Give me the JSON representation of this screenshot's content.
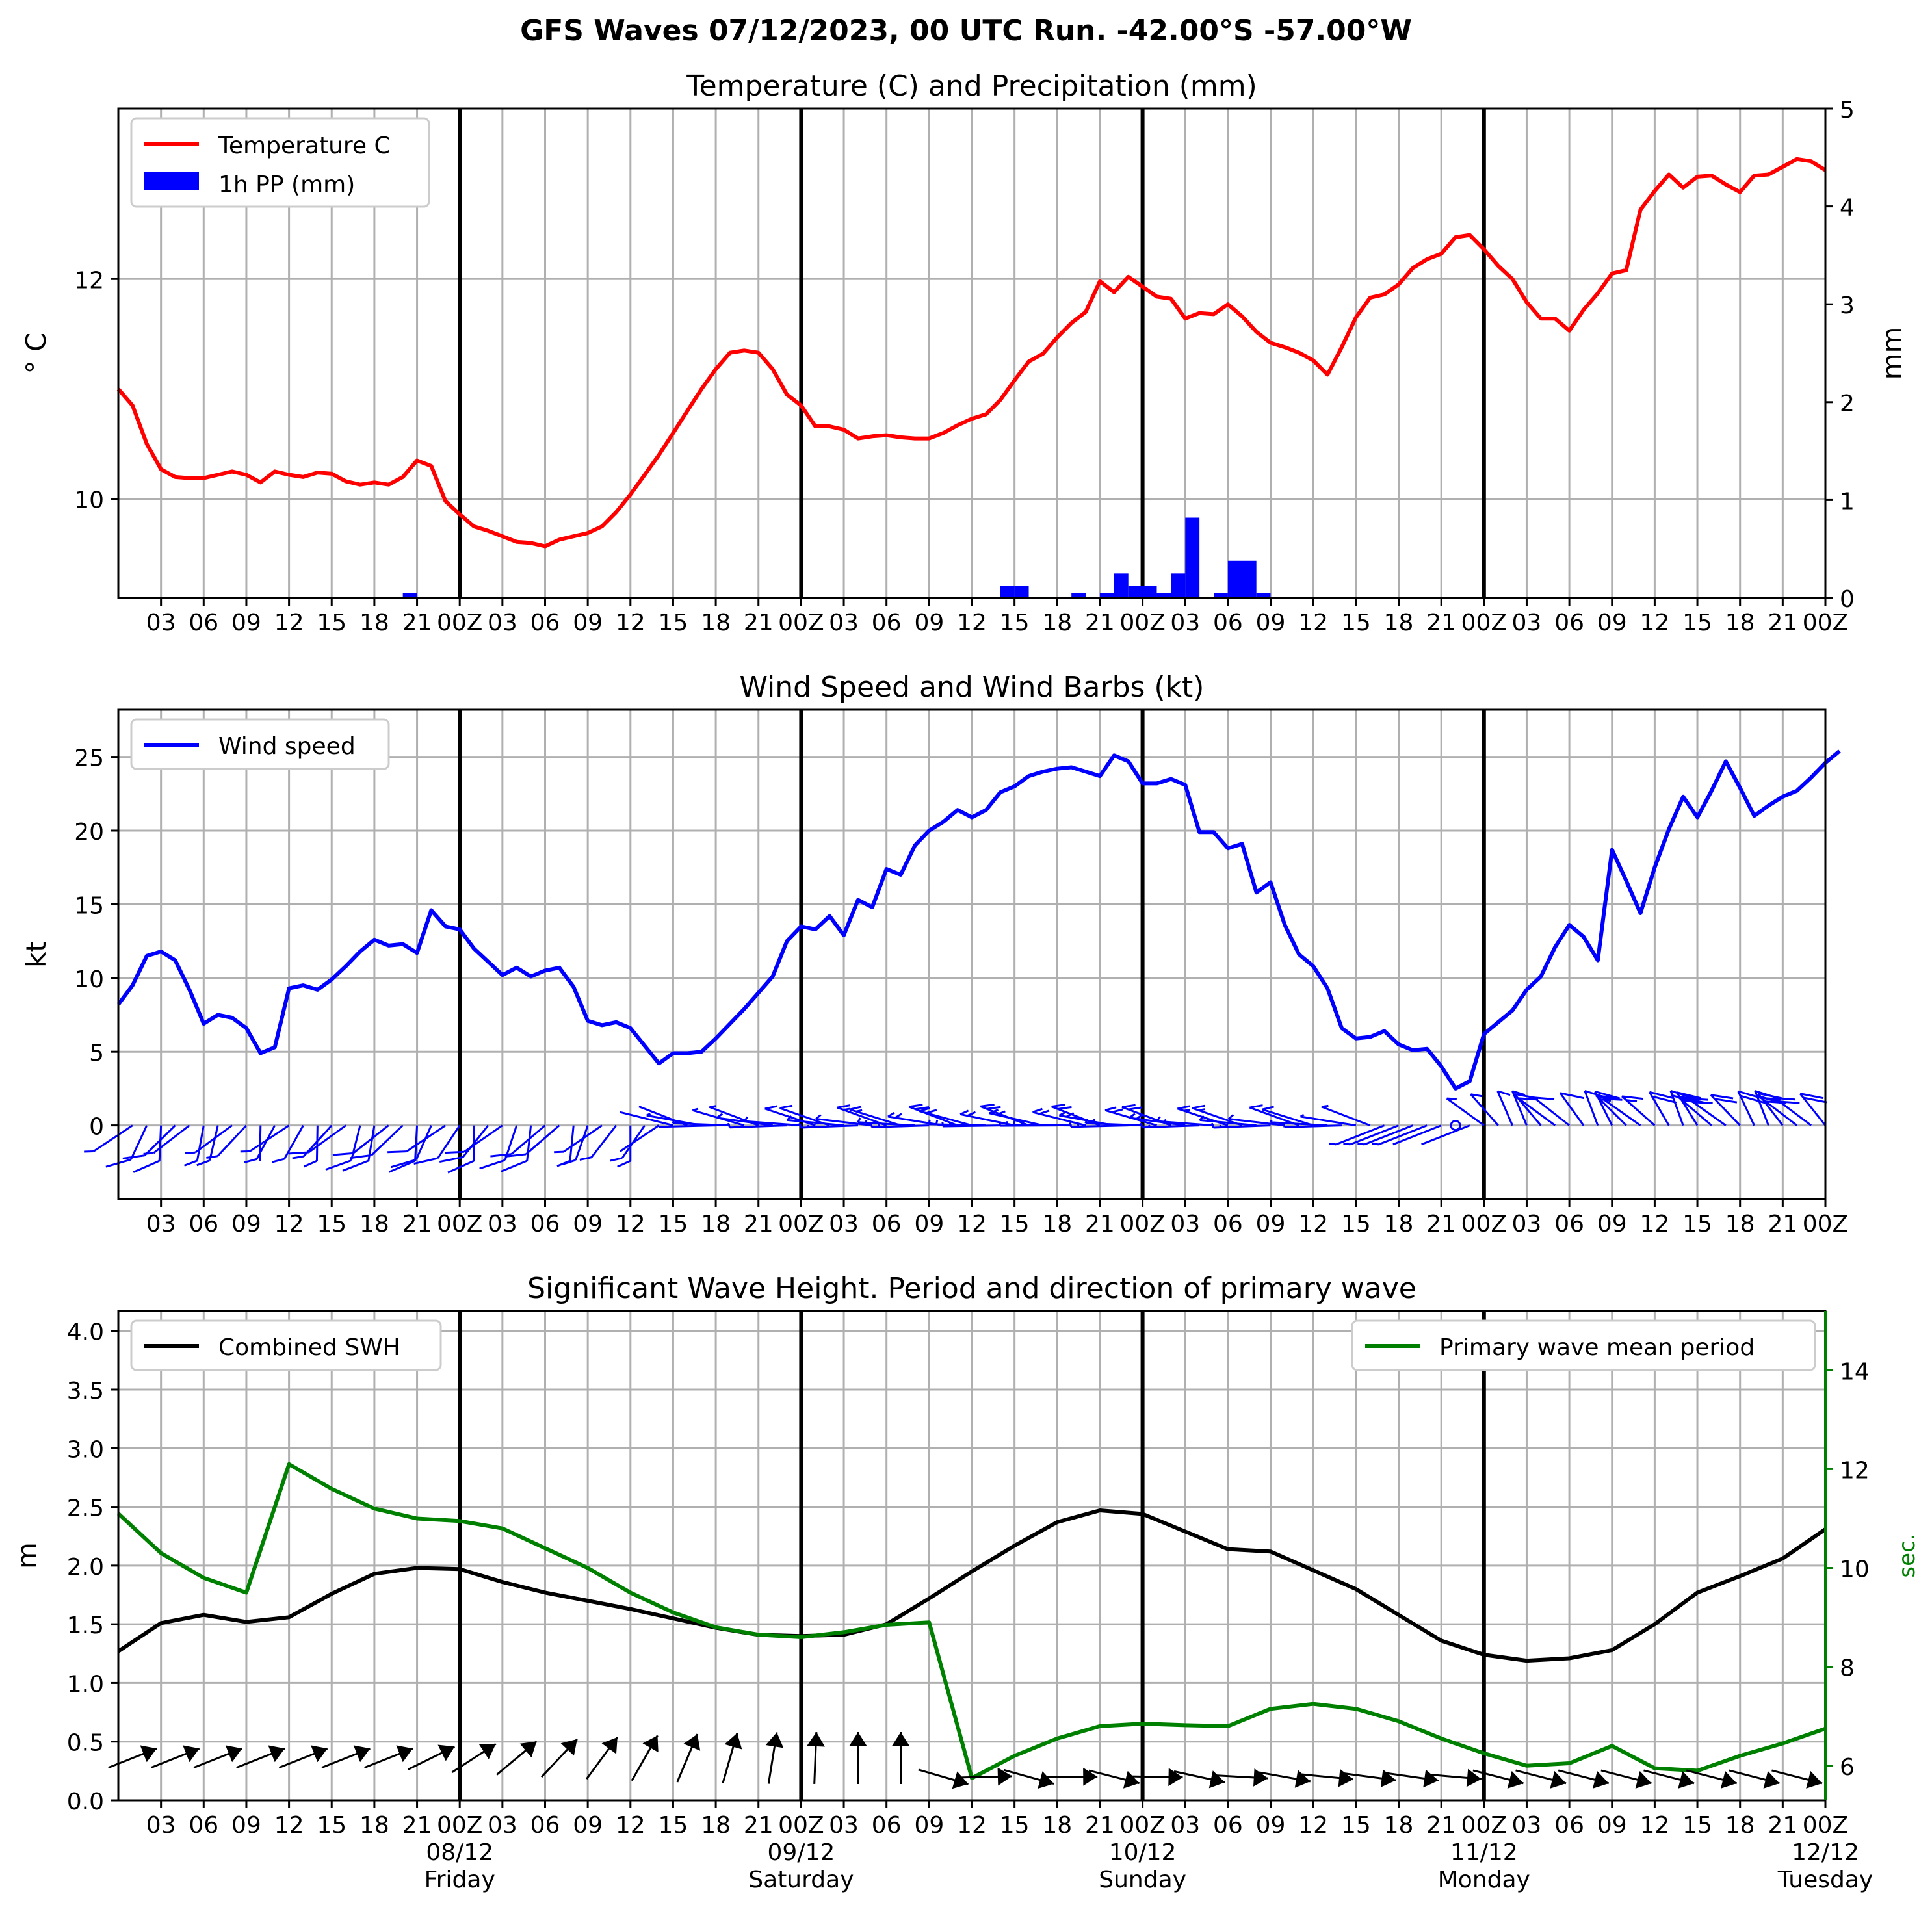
{
  "suptitle": "GFS Waves 07/12/2023, 00 UTC Run. -42.00°S -57.00°W",
  "colors": {
    "temperature": "#ff0000",
    "precip": "#0000ff",
    "wind": "#0000ff",
    "swh": "#000000",
    "period": "#008000",
    "grid": "#b0b0b0",
    "axes": "#000000"
  },
  "hour_labels": [
    "03",
    "06",
    "09",
    "12",
    "15",
    "18",
    "21",
    "00Z",
    "03",
    "06",
    "09",
    "12",
    "15",
    "18",
    "21",
    "00Z",
    "03",
    "06",
    "09",
    "12",
    "15",
    "18",
    "21",
    "00Z",
    "03",
    "06",
    "09",
    "12",
    "15",
    "18",
    "21",
    "00Z",
    "03",
    "06",
    "09",
    "12",
    "15",
    "18",
    "21",
    "00Z"
  ],
  "day_labels": [
    {
      "hour": 24,
      "date": "08/12",
      "day": "Friday"
    },
    {
      "hour": 48,
      "date": "09/12",
      "day": "Saturday"
    },
    {
      "hour": 72,
      "date": "10/12",
      "day": "Sunday"
    },
    {
      "hour": 96,
      "date": "11/12",
      "day": "Monday"
    },
    {
      "hour": 120,
      "date": "12/12",
      "day": "Tuesday"
    }
  ],
  "chart_data": [
    {
      "type": "line",
      "title": "Temperature (C) and Precipitation (mm)",
      "ylabel": "° C",
      "y2label": "mm",
      "xlim": [
        0,
        120
      ],
      "ylim": [
        9.1,
        13.55
      ],
      "y2lim": [
        0,
        5
      ],
      "yticks": [
        10,
        12
      ],
      "y2ticks": [
        0,
        1,
        2,
        3,
        4,
        5
      ],
      "grid": true,
      "legend_position": "upper left",
      "legend": [
        "Temperature C",
        "1h PP (mm)"
      ],
      "series": [
        {
          "name": "Temperature C",
          "hourly_x0": 0,
          "hourly_step": 1,
          "values": [
            11.0,
            10.85,
            10.5,
            10.27,
            10.2,
            10.19,
            10.19,
            10.22,
            10.25,
            10.22,
            10.15,
            10.25,
            10.22,
            10.2,
            10.24,
            10.23,
            10.16,
            10.13,
            10.15,
            10.13,
            10.2,
            10.35,
            10.3,
            9.98,
            9.86,
            9.75,
            9.71,
            9.66,
            9.61,
            9.6,
            9.57,
            9.63,
            9.66,
            9.69,
            9.75,
            9.88,
            10.04,
            10.22,
            10.4,
            10.6,
            10.8,
            11.0,
            11.18,
            11.33,
            11.35,
            11.33,
            11.18,
            10.95,
            10.85,
            10.66,
            10.66,
            10.63,
            10.55,
            10.57,
            10.58,
            10.56,
            10.55,
            10.55,
            10.6,
            10.67,
            10.73,
            10.77,
            10.9,
            11.08,
            11.25,
            11.32,
            11.47,
            11.6,
            11.7,
            11.98,
            11.88,
            12.02,
            11.93,
            11.84,
            11.82,
            11.64,
            11.69,
            11.68,
            11.77,
            11.66,
            11.52,
            11.42,
            11.38,
            11.33,
            11.26,
            11.13,
            11.38,
            11.65,
            11.83,
            11.86,
            11.95,
            12.1,
            12.18,
            12.23,
            12.38,
            12.4,
            12.27,
            12.12,
            12.0,
            11.79,
            11.64,
            11.64,
            11.53,
            11.72,
            11.87,
            12.05,
            12.08,
            12.63,
            12.8,
            12.95,
            12.83,
            12.93,
            12.94,
            12.86,
            12.79,
            12.94,
            12.95,
            13.02,
            13.09,
            13.07,
            12.99
          ]
        },
        {
          "name": "1h PP (mm)",
          "type": "bar",
          "hours": [
            20.5,
            62.5,
            63.5,
            67.5,
            69.5,
            70.5,
            71.5,
            72.5,
            73.5,
            74.5,
            75.5,
            77.5,
            78.5,
            79.5,
            80.5
          ],
          "values": [
            0.05,
            0.12,
            0.12,
            0.05,
            0.05,
            0.25,
            0.12,
            0.12,
            0.05,
            0.25,
            0.82,
            0.05,
            0.38,
            0.38,
            0.05
          ]
        }
      ]
    },
    {
      "type": "line",
      "title": "Wind Speed and Wind Barbs (kt)",
      "ylabel": "kt",
      "xlim": [
        0,
        120
      ],
      "ylim": [
        -5,
        28.2
      ],
      "yticks": [
        0,
        5,
        10,
        15,
        20,
        25
      ],
      "grid": true,
      "legend_position": "upper left",
      "legend": [
        "Wind speed"
      ],
      "series": [
        {
          "name": "Wind speed",
          "hourly_x0": 0,
          "hourly_step": 1,
          "values": [
            8.2,
            9.5,
            11.5,
            11.8,
            11.2,
            9.2,
            6.9,
            7.5,
            7.3,
            6.6,
            4.9,
            5.3,
            9.3,
            9.5,
            9.2,
            9.9,
            10.8,
            11.8,
            12.6,
            12.2,
            12.3,
            11.7,
            14.6,
            13.5,
            13.3,
            12.0,
            11.1,
            10.2,
            10.7,
            10.1,
            10.5,
            10.7,
            9.4,
            7.1,
            6.8,
            7.0,
            6.6,
            5.4,
            4.2,
            4.9,
            4.9,
            5.0,
            5.9,
            6.9,
            7.9,
            9.0,
            10.1,
            12.5,
            13.5,
            13.3,
            14.2,
            12.9,
            15.3,
            14.8,
            17.4,
            17.0,
            19.0,
            20.0,
            20.6,
            21.4,
            20.9,
            21.4,
            22.6,
            23.0,
            23.7,
            24.0,
            24.2,
            24.3,
            24.0,
            23.7,
            25.1,
            24.7,
            23.2,
            23.2,
            23.5,
            23.1,
            19.9,
            19.9,
            18.8,
            19.1,
            15.8,
            16.5,
            13.6,
            11.6,
            10.8,
            9.3,
            6.6,
            5.9,
            6.0,
            6.4,
            5.5,
            5.1,
            5.2,
            4.0,
            2.5,
            3.0,
            6.2,
            7.0,
            7.8,
            9.2,
            10.1,
            12.1,
            13.6,
            12.8,
            11.2,
            18.7,
            16.6,
            14.4,
            17.5,
            20.1,
            22.3,
            20.9,
            22.7,
            24.7,
            22.9,
            21.0,
            21.7,
            22.3,
            22.7,
            23.6,
            24.6,
            25.4
          ]
        },
        {
          "name": "Wind barbs",
          "type": "barbs",
          "hours": [
            1,
            2,
            3,
            4,
            5,
            6,
            7,
            8,
            9,
            10,
            11,
            12,
            13,
            14,
            15,
            16,
            17,
            18,
            19,
            20,
            21,
            22,
            23,
            24,
            25,
            26,
            27,
            28,
            29,
            30,
            31,
            32,
            33,
            34,
            35,
            36,
            37,
            38,
            39,
            40,
            41,
            42,
            43,
            44,
            45,
            46,
            47,
            48,
            49,
            50,
            51,
            52,
            53,
            54,
            55,
            56,
            57,
            58,
            59,
            60,
            61,
            62,
            63,
            64,
            65,
            66,
            67,
            68,
            69,
            70,
            71,
            72,
            73,
            74,
            75,
            76,
            77,
            78,
            79,
            80,
            81,
            82,
            83,
            84,
            85,
            86,
            87,
            88,
            89,
            90,
            91,
            92,
            93,
            94,
            95,
            96,
            97,
            98,
            99,
            100,
            101,
            102,
            103,
            104,
            105,
            106,
            107,
            108,
            109,
            110,
            111,
            112,
            113,
            114,
            115,
            116,
            117,
            118,
            119,
            120
          ]
        }
      ]
    },
    {
      "type": "line",
      "title": "Significant Wave Height. Period and direction of primary wave",
      "ylabel": "m",
      "y2label": "sec.",
      "xlim": [
        0,
        120
      ],
      "ylim": [
        0,
        4.17
      ],
      "y2lim": [
        5.3,
        15.2
      ],
      "yticks": [
        0.0,
        0.5,
        1.0,
        1.5,
        2.0,
        2.5,
        3.0,
        3.5,
        4.0
      ],
      "y2ticks": [
        6,
        8,
        10,
        12,
        14
      ],
      "grid": true,
      "legend_position": "upper left / upper right",
      "legend": [
        "Combined SWH",
        "Primary wave mean period"
      ],
      "series": [
        {
          "name": "Combined SWH",
          "x": [
            0,
            3,
            6,
            9,
            12,
            15,
            18,
            21,
            24,
            27,
            30,
            33,
            36,
            39,
            42,
            45,
            48,
            51,
            54,
            57,
            60,
            63,
            66,
            69,
            72,
            75,
            78,
            81,
            84,
            87,
            90,
            93,
            96,
            99,
            102,
            105,
            108,
            111,
            114,
            117,
            120
          ],
          "values": [
            1.27,
            1.51,
            1.58,
            1.52,
            1.56,
            1.76,
            1.93,
            1.98,
            1.97,
            1.86,
            1.77,
            1.7,
            1.63,
            1.55,
            1.47,
            1.41,
            1.4,
            1.41,
            1.5,
            1.72,
            1.95,
            2.17,
            2.37,
            2.47,
            2.44,
            2.29,
            2.14,
            2.12,
            1.96,
            1.8,
            1.58,
            1.36,
            1.24,
            1.19,
            1.21,
            1.28,
            1.5,
            1.77,
            1.91,
            2.06,
            2.31
          ]
        },
        {
          "name": "Primary wave mean period",
          "x": [
            0,
            3,
            6,
            9,
            12,
            15,
            18,
            21,
            24,
            27,
            30,
            33,
            36,
            39,
            42,
            45,
            48,
            51,
            54,
            57,
            60,
            63,
            66,
            69,
            72,
            75,
            78,
            81,
            84,
            87,
            90,
            93,
            96,
            99,
            102,
            105,
            108,
            111,
            114,
            117,
            120
          ],
          "values": [
            11.1,
            10.3,
            9.8,
            9.5,
            12.1,
            11.6,
            11.2,
            11.0,
            10.95,
            10.8,
            10.4,
            10.0,
            9.5,
            9.1,
            8.8,
            8.65,
            8.6,
            8.7,
            8.85,
            8.9,
            5.75,
            6.2,
            6.55,
            6.8,
            6.85,
            6.82,
            6.8,
            7.15,
            7.25,
            7.15,
            6.9,
            6.55,
            6.25,
            6.0,
            6.05,
            6.4,
            5.95,
            5.9,
            6.2,
            6.45,
            6.75
          ]
        },
        {
          "name": "Primary wave direction",
          "type": "arrows",
          "x": [
            1,
            4,
            7,
            10,
            13,
            16,
            19,
            22,
            25,
            28,
            31,
            34,
            37,
            40,
            43,
            46,
            49,
            52,
            55,
            58,
            61,
            64,
            67,
            70,
            73,
            76,
            79,
            82,
            85,
            88,
            91,
            94,
            97,
            100,
            103,
            106,
            109,
            112,
            115,
            118,
            121
          ]
        }
      ]
    }
  ]
}
